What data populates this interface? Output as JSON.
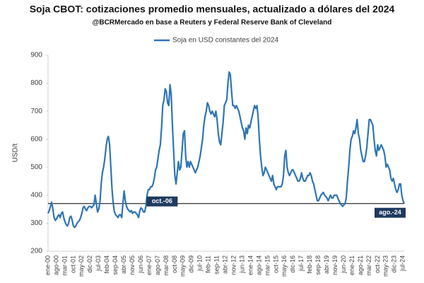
{
  "chart_data": {
    "type": "line",
    "title": "Soja CBOT: cotizaciones promedio mensuales, actualizado a dólares del 2024",
    "subtitle": "@BCRMercado en base a Reuters y Federal Reserve Bank of Cleveland",
    "y_label": "USD/t",
    "annotations": [
      {
        "text": "oct.-06",
        "index": 81
      },
      {
        "text": "ago.-24",
        "index": 295
      }
    ],
    "ylim": [
      200,
      900
    ],
    "yticks": [
      200,
      300,
      400,
      500,
      600,
      700,
      800,
      900
    ],
    "grid": false,
    "categories": [
      "ene-00",
      null,
      null,
      null,
      null,
      null,
      null,
      "ago-00",
      null,
      null,
      null,
      null,
      null,
      null,
      "mar-01",
      null,
      null,
      null,
      null,
      null,
      null,
      "oct-01",
      null,
      null,
      null,
      null,
      null,
      null,
      "may-02",
      null,
      null,
      null,
      null,
      null,
      null,
      "dic-02",
      null,
      null,
      null,
      null,
      null,
      null,
      "jul-03",
      null,
      null,
      null,
      null,
      null,
      null,
      "feb-04",
      null,
      null,
      null,
      null,
      null,
      null,
      "sep-04",
      null,
      null,
      null,
      null,
      null,
      null,
      "abr-05",
      null,
      null,
      null,
      null,
      null,
      null,
      "nov-05",
      null,
      null,
      null,
      null,
      null,
      null,
      "jun-06",
      null,
      null,
      null,
      null,
      null,
      null,
      "ene-07",
      null,
      null,
      null,
      null,
      null,
      null,
      "ago-07",
      null,
      null,
      null,
      null,
      null,
      null,
      "mar-08",
      null,
      null,
      null,
      null,
      null,
      null,
      "oct-08",
      null,
      null,
      null,
      null,
      null,
      null,
      "may-09",
      null,
      null,
      null,
      null,
      null,
      null,
      "dic-09",
      null,
      null,
      null,
      null,
      null,
      null,
      "jul-10",
      null,
      null,
      null,
      null,
      null,
      null,
      "feb-11",
      null,
      null,
      null,
      null,
      null,
      null,
      "sep-11",
      null,
      null,
      null,
      null,
      null,
      null,
      "abr-12",
      null,
      null,
      null,
      null,
      null,
      null,
      "nov-12",
      null,
      null,
      null,
      null,
      null,
      null,
      "jun-13",
      null,
      null,
      null,
      null,
      null,
      null,
      "ene-14",
      null,
      null,
      null,
      null,
      null,
      null,
      "ago-14",
      null,
      null,
      null,
      null,
      null,
      null,
      "mar-15",
      null,
      null,
      null,
      null,
      null,
      null,
      "oct-15",
      null,
      null,
      null,
      null,
      null,
      null,
      "may-16",
      null,
      null,
      null,
      null,
      null,
      null,
      "dic-16",
      null,
      null,
      null,
      null,
      null,
      null,
      "jul-17",
      null,
      null,
      null,
      null,
      null,
      null,
      "feb-18",
      null,
      null,
      null,
      null,
      null,
      null,
      "sep-18",
      null,
      null,
      null,
      null,
      null,
      null,
      "abr-19",
      null,
      null,
      null,
      null,
      null,
      null,
      "nov-19",
      null,
      null,
      null,
      null,
      null,
      null,
      "jun-20",
      null,
      null,
      null,
      null,
      null,
      null,
      "ene-21",
      null,
      null,
      null,
      null,
      null,
      null,
      "ago-21",
      null,
      null,
      null,
      null,
      null,
      null,
      "mar-22",
      null,
      null,
      null,
      null,
      null,
      null,
      "oct-22",
      null,
      null,
      null,
      null,
      null,
      null,
      "may-23",
      null,
      null,
      null,
      null,
      null,
      null,
      "dic-23",
      null,
      null,
      null,
      null,
      null,
      null,
      "jul-24",
      null
    ],
    "series": [
      {
        "name": "Soja en USD constantes del 2024",
        "color": "#2e75b6",
        "values": [
          335,
          345,
          360,
          375,
          350,
          320,
          310,
          315,
          325,
          330,
          320,
          335,
          340,
          320,
          305,
          295,
          290,
          300,
          320,
          325,
          310,
          290,
          285,
          290,
          300,
          305,
          310,
          320,
          335,
          355,
          360,
          350,
          345,
          355,
          360,
          360,
          355,
          360,
          365,
          400,
          370,
          340,
          350,
          375,
          440,
          480,
          500,
          530,
          570,
          600,
          610,
          580,
          500,
          420,
          370,
          340,
          330,
          325,
          320,
          330,
          330,
          320,
          370,
          415,
          380,
          360,
          350,
          345,
          340,
          345,
          335,
          340,
          340,
          335,
          330,
          320,
          345,
          355,
          350,
          340,
          340,
          360,
          400,
          420,
          420,
          430,
          430,
          440,
          460,
          490,
          500,
          530,
          560,
          580,
          640,
          720,
          740,
          780,
          770,
          730,
          720,
          795,
          760,
          650,
          560,
          470,
          440,
          480,
          520,
          490,
          500,
          560,
          620,
          630,
          540,
          500,
          520,
          500,
          520,
          510,
          500,
          490,
          480,
          490,
          500,
          520,
          540,
          570,
          600,
          650,
          680,
          700,
          730,
          720,
          700,
          690,
          700,
          690,
          680,
          700,
          670,
          620,
          590,
          580,
          620,
          660,
          720,
          730,
          740,
          800,
          840,
          830,
          770,
          720,
          720,
          710,
          720,
          710,
          700,
          680,
          660,
          640,
          630,
          600,
          640,
          620,
          650,
          640,
          660,
          680,
          700,
          720,
          710,
          720,
          680,
          600,
          540,
          500,
          470,
          480,
          500,
          490,
          480,
          470,
          460,
          450,
          470,
          440,
          430,
          420,
          430,
          430,
          430,
          430,
          440,
          470,
          540,
          560,
          500,
          480,
          470,
          480,
          490,
          490,
          480,
          470,
          460,
          450,
          450,
          460,
          480,
          460,
          450,
          450,
          460,
          470,
          470,
          480,
          470,
          450,
          440,
          420,
          400,
          380,
          380,
          390,
          400,
          405,
          410,
          400,
          395,
          390,
          380,
          390,
          400,
          390,
          390,
          400,
          400,
          400,
          390,
          380,
          370,
          365,
          360,
          365,
          370,
          390,
          450,
          500,
          560,
          600,
          610,
          630,
          620,
          640,
          670,
          620,
          600,
          560,
          540,
          520,
          520,
          540,
          570,
          620,
          670,
          670,
          660,
          650,
          600,
          560,
          540,
          580,
          560,
          570,
          580,
          570,
          560,
          540,
          500,
          510,
          500,
          490,
          460,
          450,
          460,
          440,
          420,
          410,
          420,
          440,
          440,
          400,
          380,
          370
        ]
      }
    ]
  }
}
